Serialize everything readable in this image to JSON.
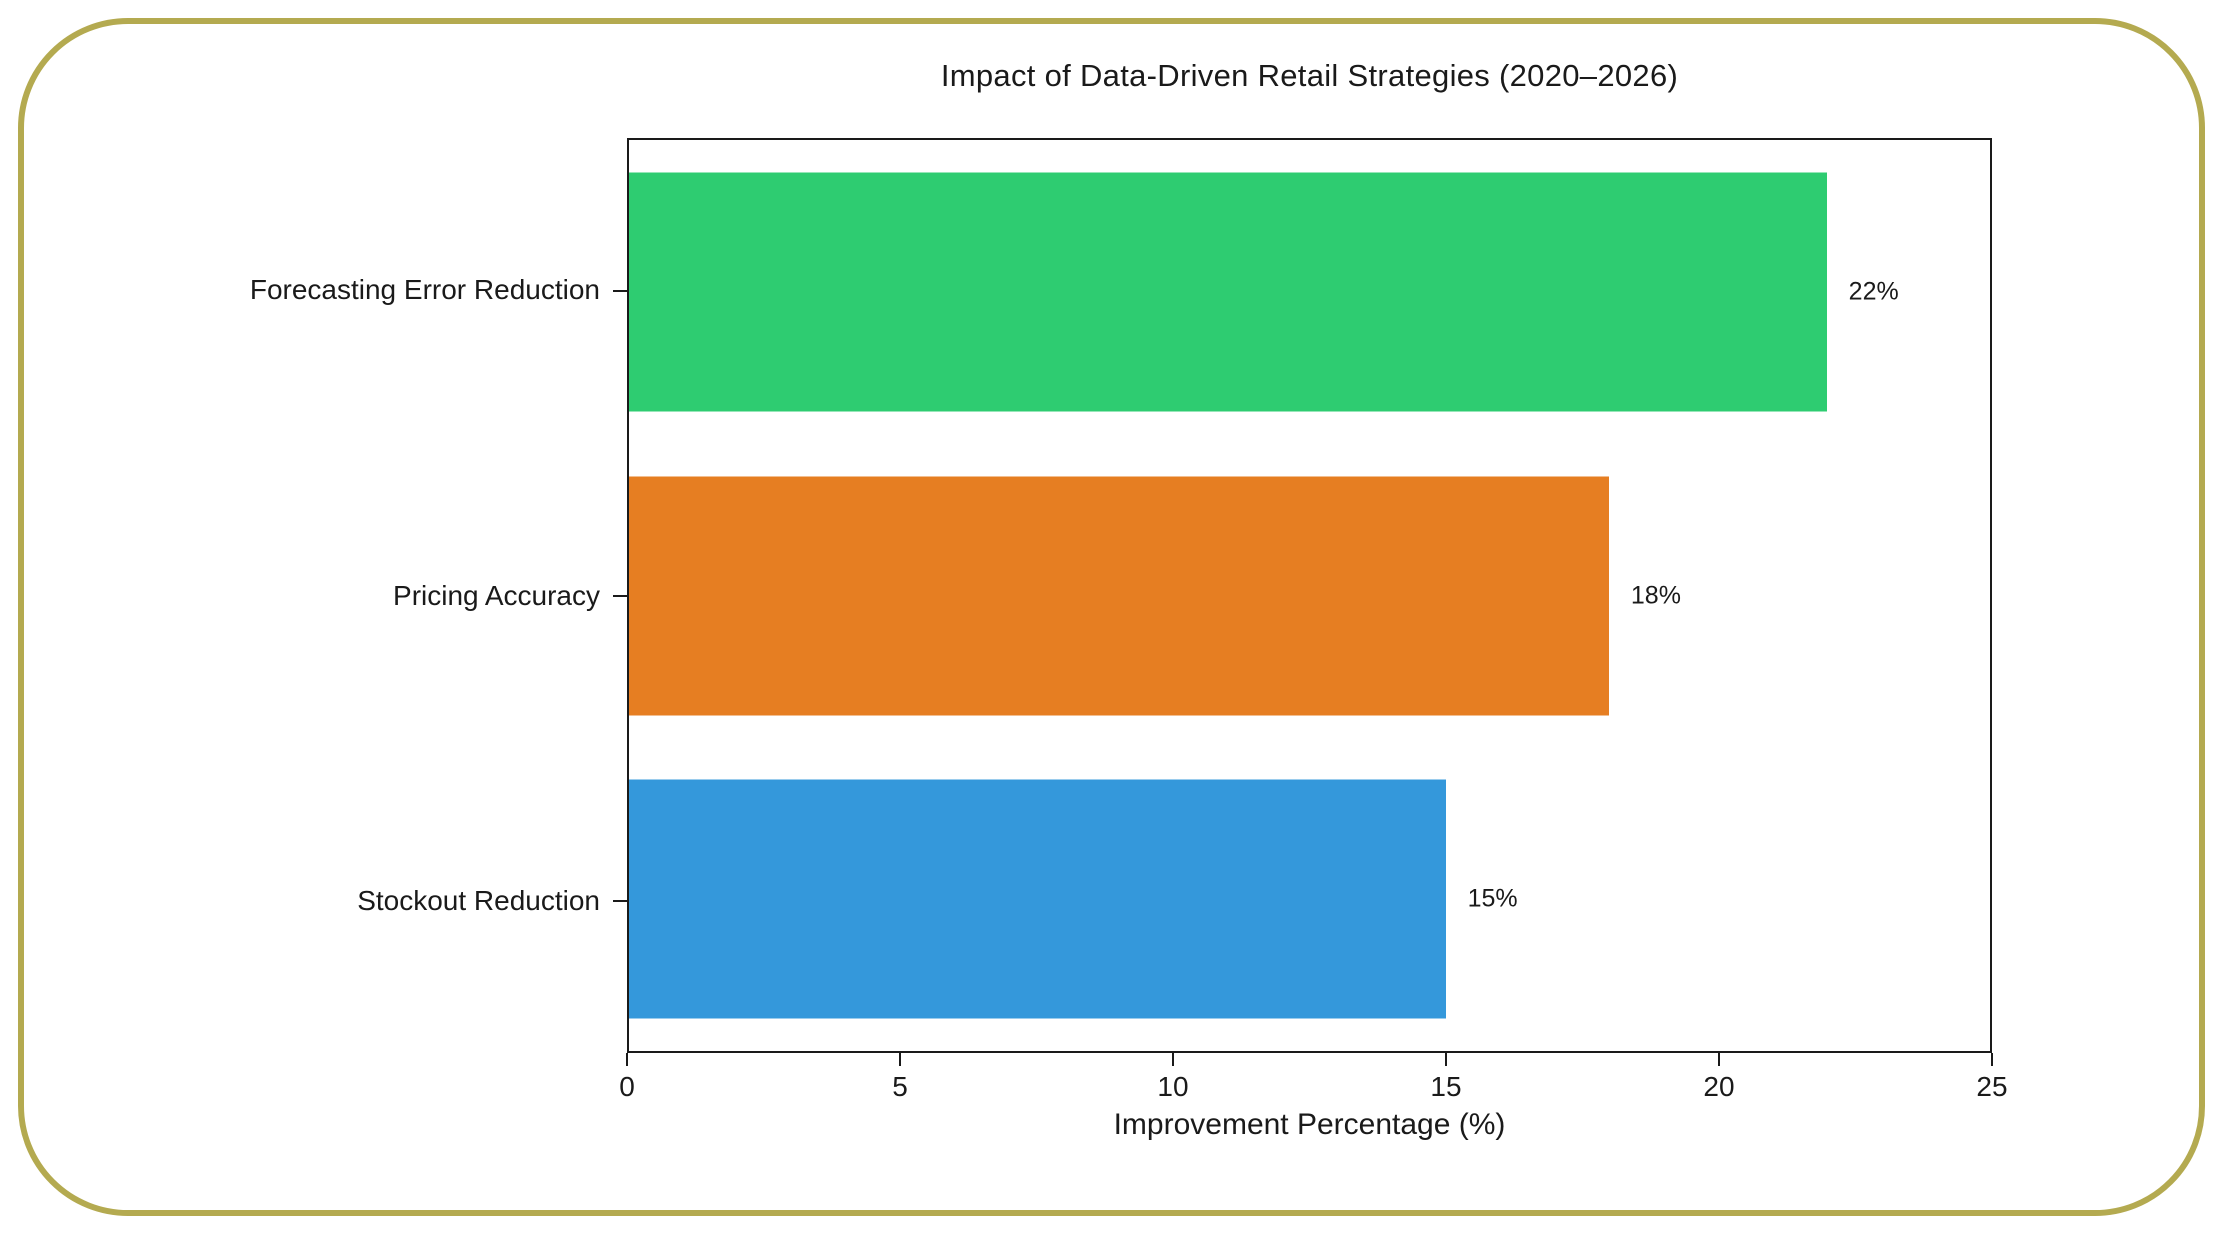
{
  "frame": {
    "border_color": "#b4aa50"
  },
  "chart_data": {
    "type": "bar",
    "orientation": "horizontal",
    "title": "Impact of Data-Driven Retail Strategies (2020–2026)",
    "categories": [
      "Forecasting Error Reduction",
      "Pricing Accuracy",
      "Stockout Reduction"
    ],
    "values": [
      22,
      18,
      15
    ],
    "value_labels": [
      "22%",
      "18%",
      "15%"
    ],
    "bar_colors": [
      "#2ecc71",
      "#e67e22",
      "#3498db"
    ],
    "xlabel": "Improvement Percentage (%)",
    "xlim": [
      0,
      25
    ],
    "xticks": [
      0,
      5,
      10,
      15,
      20,
      25
    ],
    "grid": false,
    "legend_position": "none"
  }
}
